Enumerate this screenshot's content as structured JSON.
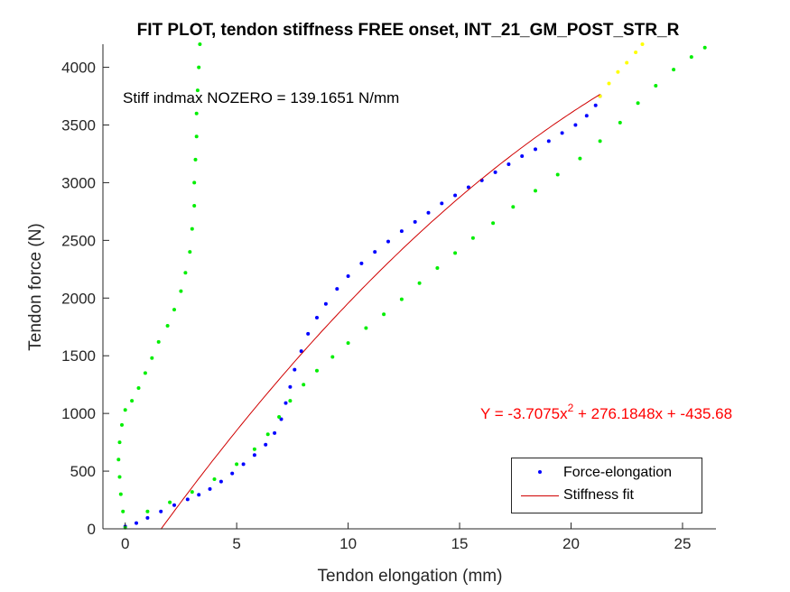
{
  "chart_data": {
    "type": "scatter",
    "title": "FIT PLOT, tendon stiffness FREE onset, INT_21_GM_POST_STR_R",
    "xlabel": "Tendon elongation (mm)",
    "ylabel": "Tendon force (N)",
    "xlim": [
      -1,
      26.5
    ],
    "ylim": [
      0,
      4200
    ],
    "xticks": [
      0,
      5,
      10,
      15,
      20,
      25
    ],
    "yticks": [
      0,
      500,
      1000,
      1500,
      2000,
      2500,
      3000,
      3500,
      4000
    ],
    "grid": false,
    "legend_position": "bottom-right",
    "annotations": {
      "stiffness": "Stiff indmax NOZERO = 139.1651 N/mm",
      "equation_prefix": "Y = -3.7075x",
      "equation_exponent": "2",
      "equation_suffix": " + 276.1848x + -435.68"
    },
    "colors": {
      "force_elongation": "#0000ff",
      "fit": "#d00000",
      "loading_curve": "#00ee00",
      "unloading_curve": "#00ee00",
      "tail": "#ffff00",
      "annotation_eq": "#ff0000"
    },
    "legend": [
      {
        "name": "Force-elongation",
        "style": "dot"
      },
      {
        "name": "Stiffness fit",
        "style": "line"
      }
    ],
    "series": [
      {
        "name": "Force-elongation",
        "role": "force_elongation",
        "style": "dots",
        "points": [
          [
            0.0,
            20
          ],
          [
            0.5,
            50
          ],
          [
            1.0,
            95
          ],
          [
            1.6,
            150
          ],
          [
            2.2,
            205
          ],
          [
            2.8,
            255
          ],
          [
            3.3,
            295
          ],
          [
            3.8,
            345
          ],
          [
            4.3,
            410
          ],
          [
            4.8,
            480
          ],
          [
            5.3,
            560
          ],
          [
            5.8,
            640
          ],
          [
            6.3,
            730
          ],
          [
            6.7,
            830
          ],
          [
            7.0,
            950
          ],
          [
            7.2,
            1090
          ],
          [
            7.4,
            1230
          ],
          [
            7.6,
            1380
          ],
          [
            7.9,
            1540
          ],
          [
            8.2,
            1690
          ],
          [
            8.6,
            1830
          ],
          [
            9.0,
            1950
          ],
          [
            9.5,
            2080
          ],
          [
            10.0,
            2190
          ],
          [
            10.6,
            2300
          ],
          [
            11.2,
            2400
          ],
          [
            11.8,
            2490
          ],
          [
            12.4,
            2580
          ],
          [
            13.0,
            2660
          ],
          [
            13.6,
            2740
          ],
          [
            14.2,
            2820
          ],
          [
            14.8,
            2890
          ],
          [
            15.4,
            2960
          ],
          [
            16.0,
            3020
          ],
          [
            16.6,
            3090
          ],
          [
            17.2,
            3160
          ],
          [
            17.8,
            3230
          ],
          [
            18.4,
            3290
          ],
          [
            19.0,
            3360
          ],
          [
            19.6,
            3430
          ],
          [
            20.2,
            3500
          ],
          [
            20.7,
            3580
          ],
          [
            21.1,
            3670
          ],
          [
            21.3,
            3750
          ]
        ]
      },
      {
        "name": "",
        "role": "tail",
        "style": "dots",
        "points": [
          [
            21.3,
            3750
          ],
          [
            21.7,
            3860
          ],
          [
            22.1,
            3960
          ],
          [
            22.5,
            4040
          ],
          [
            22.9,
            4130
          ],
          [
            23.2,
            4200
          ]
        ]
      },
      {
        "name": "",
        "role": "loading_curve",
        "style": "dots",
        "points": [
          [
            0.0,
            10
          ],
          [
            -0.1,
            150
          ],
          [
            -0.2,
            300
          ],
          [
            -0.25,
            450
          ],
          [
            -0.3,
            600
          ],
          [
            -0.25,
            750
          ],
          [
            -0.15,
            900
          ],
          [
            0.0,
            1030
          ],
          [
            0.3,
            1110
          ],
          [
            0.6,
            1220
          ],
          [
            0.9,
            1350
          ],
          [
            1.2,
            1480
          ],
          [
            1.5,
            1620
          ],
          [
            1.9,
            1760
          ],
          [
            2.2,
            1900
          ],
          [
            2.5,
            2060
          ],
          [
            2.7,
            2220
          ],
          [
            2.9,
            2400
          ],
          [
            3.0,
            2600
          ],
          [
            3.1,
            2800
          ],
          [
            3.1,
            3000
          ],
          [
            3.15,
            3200
          ],
          [
            3.2,
            3400
          ],
          [
            3.2,
            3600
          ],
          [
            3.25,
            3800
          ],
          [
            3.3,
            4000
          ],
          [
            3.35,
            4200
          ]
        ]
      },
      {
        "name": "",
        "role": "unloading_curve",
        "style": "dots",
        "points": [
          [
            1.0,
            150
          ],
          [
            2.0,
            230
          ],
          [
            3.0,
            320
          ],
          [
            4.0,
            430
          ],
          [
            5.0,
            560
          ],
          [
            5.8,
            690
          ],
          [
            6.4,
            820
          ],
          [
            6.9,
            970
          ],
          [
            7.4,
            1110
          ],
          [
            8.0,
            1250
          ],
          [
            8.6,
            1370
          ],
          [
            9.3,
            1490
          ],
          [
            10.0,
            1610
          ],
          [
            10.8,
            1740
          ],
          [
            11.6,
            1860
          ],
          [
            12.4,
            1990
          ],
          [
            13.2,
            2130
          ],
          [
            14.0,
            2260
          ],
          [
            14.8,
            2390
          ],
          [
            15.6,
            2520
          ],
          [
            16.5,
            2650
          ],
          [
            17.4,
            2790
          ],
          [
            18.4,
            2930
          ],
          [
            19.4,
            3070
          ],
          [
            20.4,
            3210
          ],
          [
            21.3,
            3360
          ],
          [
            22.2,
            3520
          ],
          [
            23.0,
            3690
          ],
          [
            23.8,
            3840
          ],
          [
            24.6,
            3980
          ],
          [
            25.4,
            4090
          ],
          [
            26.0,
            4170
          ]
        ]
      },
      {
        "name": "Stiffness fit",
        "role": "fit",
        "style": "line",
        "equation": {
          "a": -3.7075,
          "b": 276.1848,
          "c": -435.68
        },
        "x_range": [
          1.6,
          21.3
        ]
      }
    ]
  }
}
